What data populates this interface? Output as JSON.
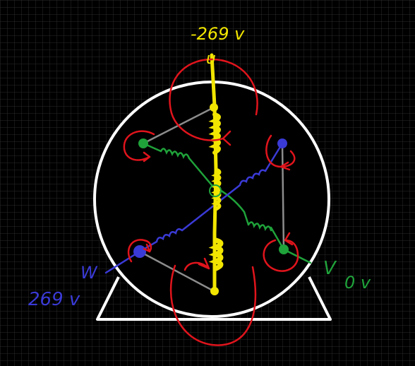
{
  "labels": {
    "u_voltage": "-269 v",
    "u_phase": "u",
    "v_phase": "V",
    "v_voltage": "0 v",
    "w_phase": "W",
    "w_voltage": "269 v"
  },
  "colors": {
    "background": "#000000",
    "grid": "#2a2a2a",
    "motor_outline": "#ffffff",
    "phase_u": "#f2e600",
    "phase_v": "#1fa23a",
    "phase_w": "#3a3ad6",
    "rotor_link": "#8c8c8c",
    "annotation_red": "#e0141c"
  },
  "icons": {
    "coil": "inductor-coil-icon",
    "terminal": "terminal-dot-icon",
    "rotation": "curved-arrow-icon"
  }
}
